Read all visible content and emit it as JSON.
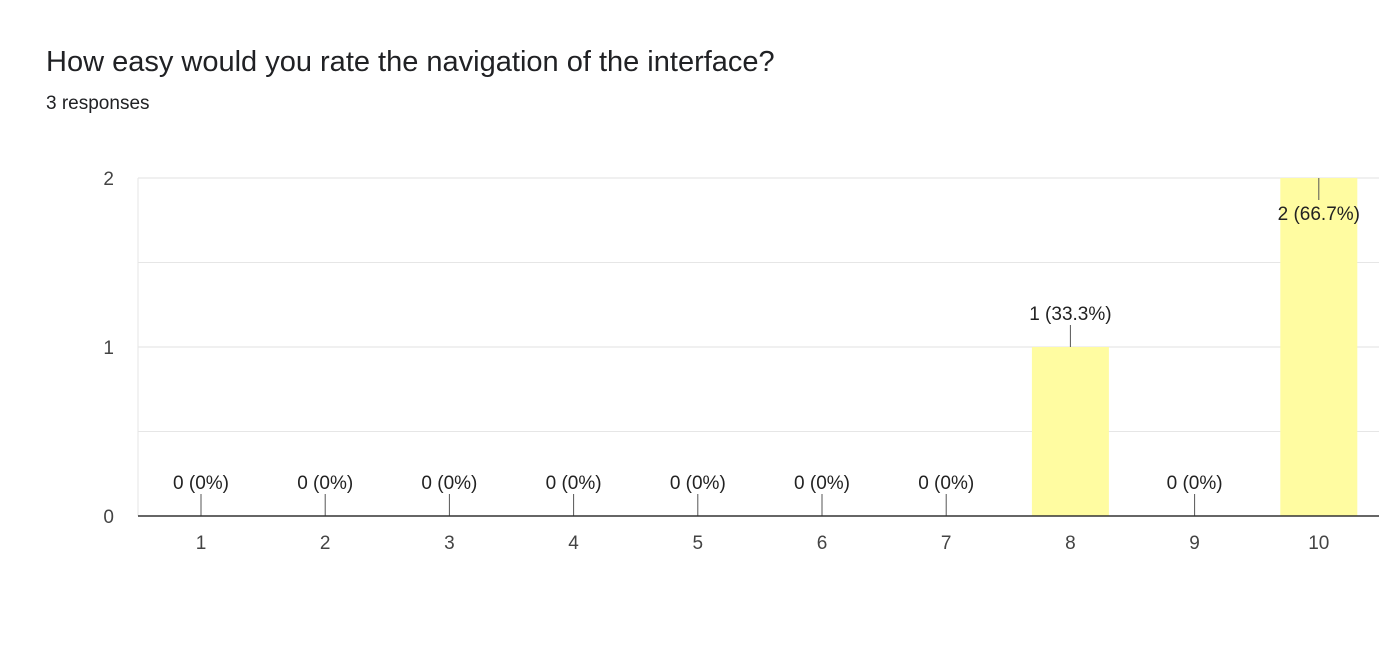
{
  "header": {
    "title": "How easy would you rate the navigation of the interface?",
    "subtitle": "3 responses"
  },
  "chart_data": {
    "type": "bar",
    "title": "How easy would you rate the navigation of the interface?",
    "xlabel": "",
    "ylabel": "",
    "categories": [
      "1",
      "2",
      "3",
      "4",
      "5",
      "6",
      "7",
      "8",
      "9",
      "10"
    ],
    "values": [
      0,
      0,
      0,
      0,
      0,
      0,
      0,
      1,
      0,
      2
    ],
    "data_labels": [
      "0 (0%)",
      "0 (0%)",
      "0 (0%)",
      "0 (0%)",
      "0 (0%)",
      "0 (0%)",
      "0 (0%)",
      "1 (33.3%)",
      "0 (0%)",
      "2 (66.7%)"
    ],
    "yticks": [
      "0",
      "1",
      "2"
    ],
    "ylim": [
      0,
      2
    ],
    "grid": true,
    "legend": "none",
    "bar_color": "#fffca1",
    "grid_color": "#e6e6e6",
    "axis_color": "#333333"
  }
}
